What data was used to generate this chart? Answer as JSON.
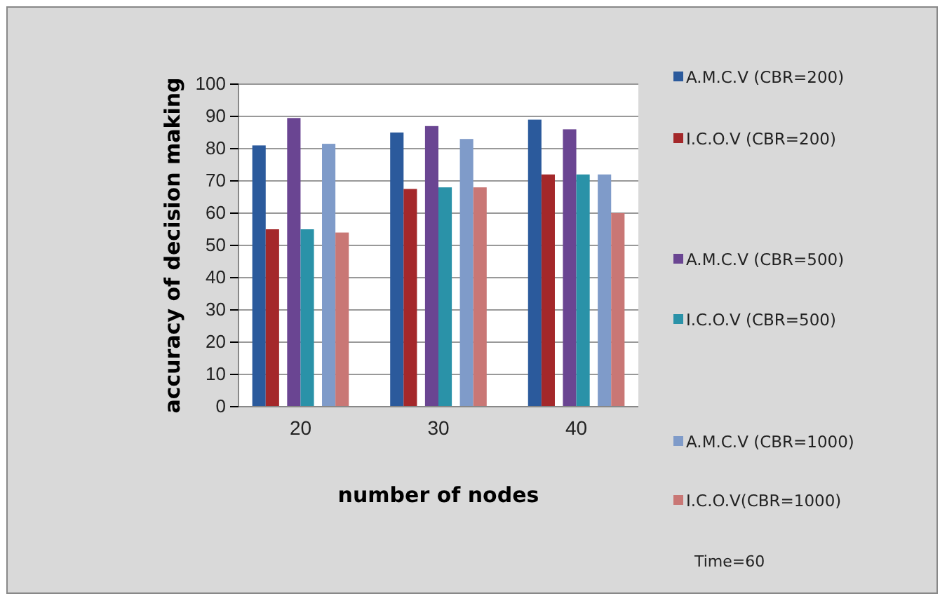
{
  "chart_data": {
    "type": "bar",
    "xlabel": "number of nodes",
    "ylabel": "accuracy of decision making",
    "categories": [
      "20",
      "30",
      "40"
    ],
    "series": [
      {
        "name": "A.M.C.V (CBR=200)",
        "color": "#2b5a9c",
        "values": [
          81,
          85,
          89
        ]
      },
      {
        "name": "I.C.O.V (CBR=200)",
        "color": "#a4282a",
        "values": [
          55,
          67.5,
          72
        ]
      },
      {
        "name": "A.M.C.V (CBR=500)",
        "color": "#6a4592",
        "values": [
          89.5,
          87,
          86
        ]
      },
      {
        "name": "I.C.O.V (CBR=500)",
        "color": "#2a92a8",
        "values": [
          55,
          68,
          72
        ]
      },
      {
        "name": "A.M.C.V (CBR=1000)",
        "color": "#7f9bc9",
        "values": [
          81.5,
          83,
          72
        ]
      },
      {
        "name": "I.C.O.V(CBR=1000)",
        "color": "#c97775",
        "values": [
          54,
          68,
          60
        ]
      }
    ],
    "ylim": [
      0,
      100
    ],
    "yticks": [
      0,
      10,
      20,
      30,
      40,
      50,
      60,
      70,
      80,
      90,
      100
    ],
    "grid": "y",
    "legend": "right",
    "annotations": [
      "Time=60"
    ]
  }
}
